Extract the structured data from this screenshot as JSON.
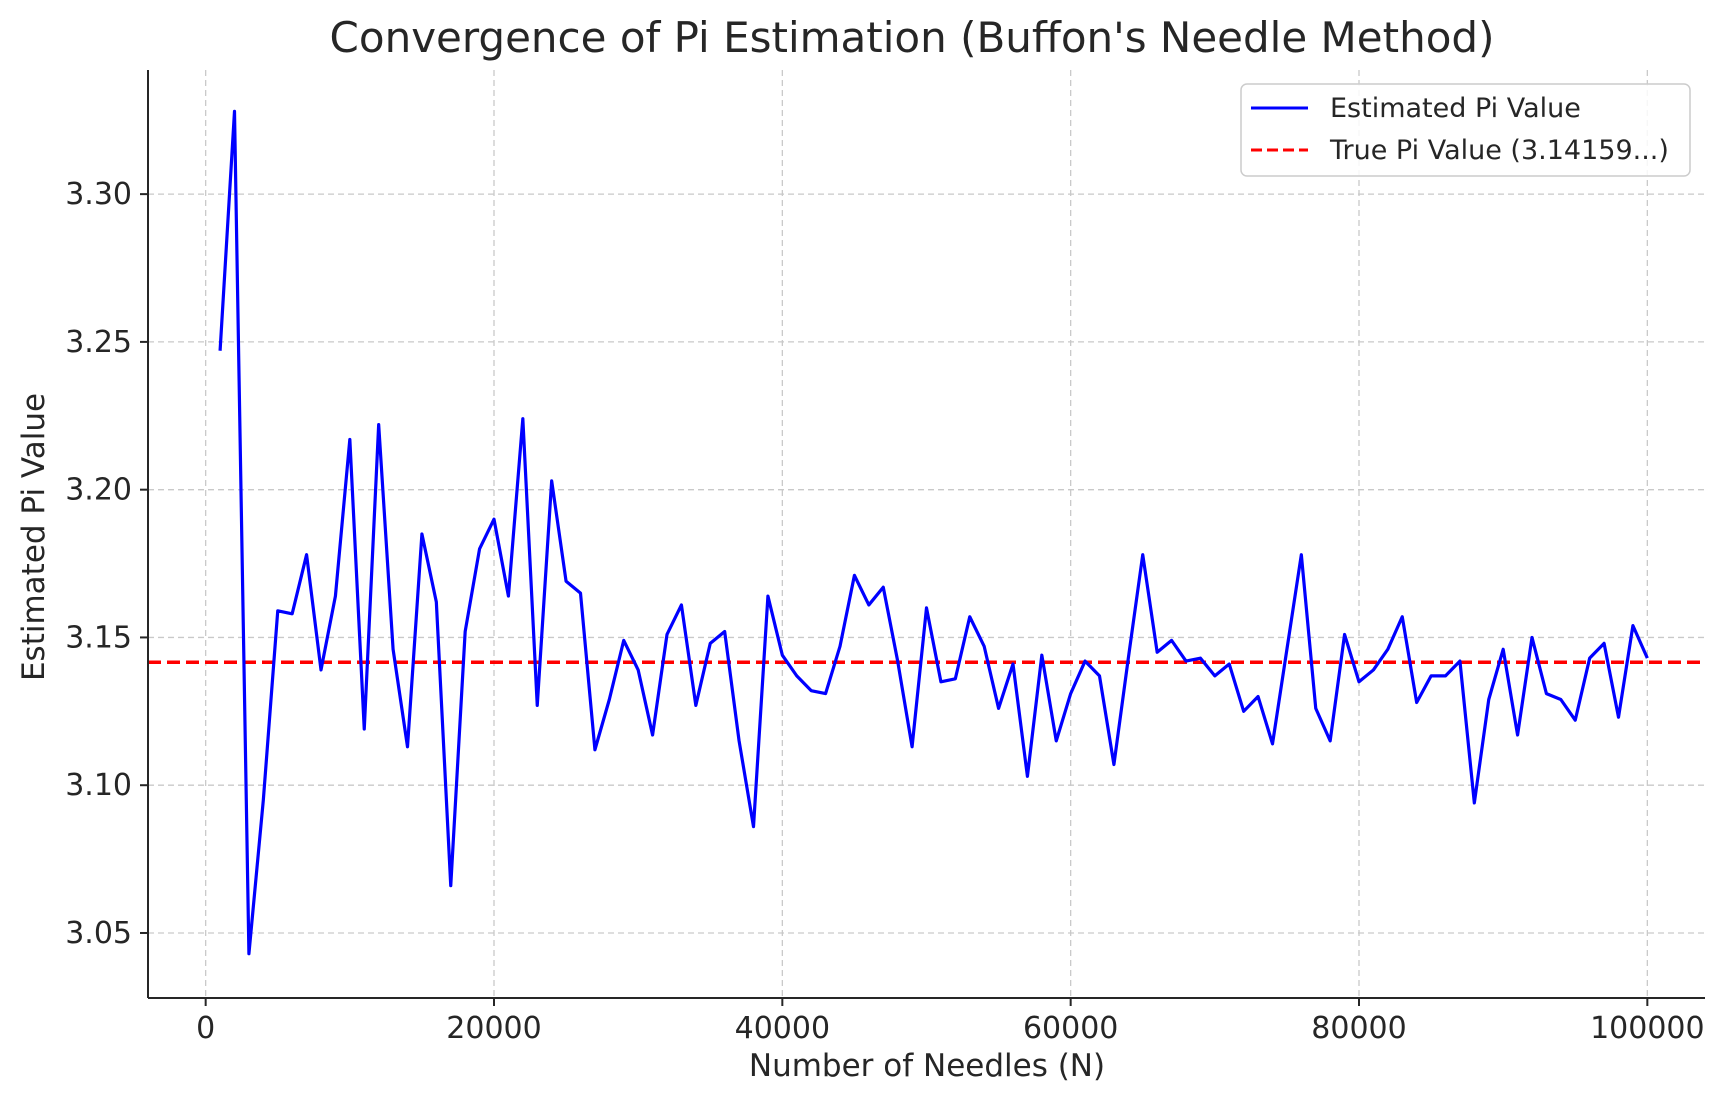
{
  "chart_data": {
    "type": "line",
    "title": "Convergence of Pi Estimation (Buffon's Needle Method)",
    "xlabel": "Number of Needles (N)",
    "ylabel": "Estimated Pi Value",
    "xlim": [
      -4000,
      104000
    ],
    "ylim": [
      3.028,
      3.342
    ],
    "x_ticks": [
      0,
      20000,
      40000,
      60000,
      80000,
      100000
    ],
    "x_tick_labels": [
      "0",
      "20000",
      "40000",
      "60000",
      "80000",
      "100000"
    ],
    "y_ticks": [
      3.05,
      3.1,
      3.15,
      3.2,
      3.25,
      3.3
    ],
    "y_tick_labels": [
      "3.05",
      "3.10",
      "3.15",
      "3.20",
      "3.25",
      "3.30"
    ],
    "grid": true,
    "legend_position": "top-right",
    "series": [
      {
        "name": "Estimated Pi Value",
        "color": "#0000ff",
        "style": "solid",
        "x": [
          1000,
          2000,
          3000,
          4000,
          5000,
          6000,
          7000,
          8000,
          9000,
          10000,
          11000,
          12000,
          13000,
          14000,
          15000,
          16000,
          17000,
          18000,
          19000,
          20000,
          21000,
          22000,
          23000,
          24000,
          25000,
          26000,
          27000,
          28000,
          29000,
          30000,
          31000,
          32000,
          33000,
          34000,
          35000,
          36000,
          37000,
          38000,
          39000,
          40000,
          41000,
          42000,
          43000,
          44000,
          45000,
          46000,
          47000,
          48000,
          49000,
          50000,
          51000,
          52000,
          53000,
          54000,
          55000,
          56000,
          57000,
          58000,
          59000,
          60000,
          61000,
          62000,
          63000,
          64000,
          65000,
          66000,
          67000,
          68000,
          69000,
          70000,
          71000,
          72000,
          73000,
          74000,
          75000,
          76000,
          77000,
          78000,
          79000,
          80000,
          81000,
          82000,
          83000,
          84000,
          85000,
          86000,
          87000,
          88000,
          89000,
          90000,
          91000,
          92000,
          93000,
          94000,
          95000,
          96000,
          97000,
          98000,
          99000,
          100000
        ],
        "values": [
          3.247,
          3.328,
          3.043,
          3.095,
          3.159,
          3.158,
          3.178,
          3.139,
          3.164,
          3.217,
          3.119,
          3.222,
          3.146,
          3.113,
          3.185,
          3.162,
          3.066,
          3.152,
          3.18,
          3.19,
          3.164,
          3.224,
          3.127,
          3.203,
          3.169,
          3.165,
          3.112,
          3.129,
          3.149,
          3.139,
          3.117,
          3.151,
          3.161,
          3.127,
          3.148,
          3.152,
          3.115,
          3.086,
          3.164,
          3.144,
          3.137,
          3.132,
          3.131,
          3.147,
          3.171,
          3.161,
          3.167,
          3.142,
          3.113,
          3.16,
          3.135,
          3.136,
          3.157,
          3.147,
          3.126,
          3.141,
          3.103,
          3.144,
          3.115,
          3.131,
          3.142,
          3.137,
          3.107,
          3.143,
          3.178,
          3.145,
          3.149,
          3.142,
          3.143,
          3.137,
          3.141,
          3.125,
          3.13,
          3.114,
          3.146,
          3.178,
          3.126,
          3.115,
          3.151,
          3.135,
          3.139,
          3.146,
          3.157,
          3.128,
          3.137,
          3.137,
          3.142,
          3.094,
          3.129,
          3.146,
          3.117,
          3.15,
          3.131,
          3.129,
          3.122,
          3.143,
          3.148,
          3.123,
          3.154,
          3.143
        ]
      },
      {
        "name": "True Pi Value (3.14159...)",
        "color": "#ff0000",
        "style": "dashed",
        "y": 3.14159
      }
    ]
  }
}
